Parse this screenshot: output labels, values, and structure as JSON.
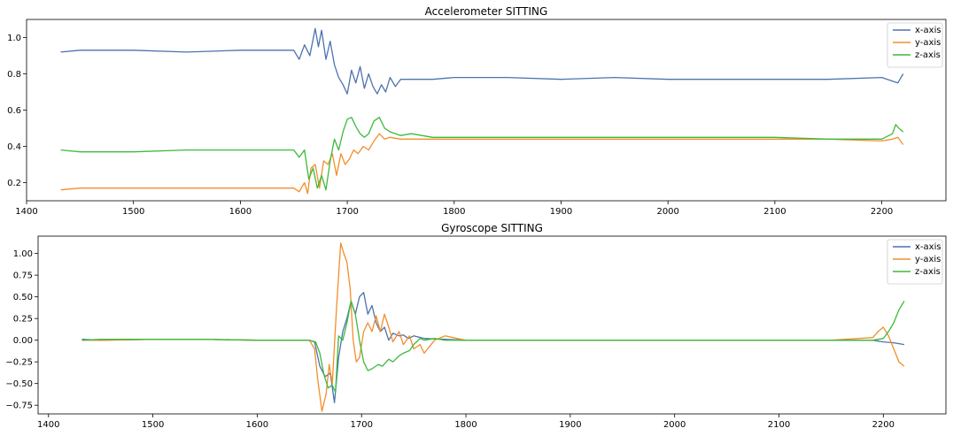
{
  "chart_data": [
    {
      "type": "line",
      "title": "Accelerometer SITTING",
      "xlabel": "",
      "ylabel": "",
      "xlim": [
        1400,
        2260
      ],
      "ylim": [
        0.1,
        1.1
      ],
      "xticks": [
        1400,
        1500,
        1600,
        1700,
        1800,
        1900,
        2000,
        2100,
        2200
      ],
      "yticks": [
        0.2,
        0.4,
        0.6,
        0.8,
        1.0
      ],
      "ytick_labels": [
        "0.2",
        "0.4",
        "0.6",
        "0.8",
        "1.0"
      ],
      "grid": false,
      "legend_position": "top-right",
      "series": [
        {
          "name": "x-axis",
          "color": "#4C72B0",
          "x": [
            1432,
            1450,
            1500,
            1550,
            1600,
            1650,
            1655,
            1660,
            1665,
            1670,
            1673,
            1676,
            1680,
            1684,
            1688,
            1692,
            1696,
            1700,
            1704,
            1708,
            1712,
            1716,
            1720,
            1724,
            1728,
            1732,
            1736,
            1740,
            1745,
            1750,
            1760,
            1780,
            1800,
            1850,
            1900,
            1950,
            2000,
            2050,
            2100,
            2150,
            2200,
            2210,
            2215,
            2220
          ],
          "y": [
            0.92,
            0.93,
            0.93,
            0.92,
            0.93,
            0.93,
            0.88,
            0.96,
            0.9,
            1.05,
            0.95,
            1.04,
            0.88,
            0.98,
            0.85,
            0.78,
            0.74,
            0.69,
            0.82,
            0.75,
            0.84,
            0.72,
            0.8,
            0.73,
            0.69,
            0.74,
            0.7,
            0.78,
            0.73,
            0.77,
            0.77,
            0.77,
            0.78,
            0.78,
            0.77,
            0.78,
            0.77,
            0.77,
            0.77,
            0.77,
            0.78,
            0.76,
            0.75,
            0.8
          ]
        },
        {
          "name": "y-axis",
          "color": "#F28E2B",
          "x": [
            1432,
            1450,
            1500,
            1550,
            1600,
            1650,
            1655,
            1660,
            1663,
            1666,
            1670,
            1674,
            1678,
            1682,
            1686,
            1690,
            1694,
            1698,
            1702,
            1706,
            1710,
            1715,
            1720,
            1725,
            1730,
            1735,
            1740,
            1750,
            1760,
            1780,
            1800,
            1850,
            1900,
            1950,
            2000,
            2050,
            2100,
            2150,
            2200,
            2210,
            2215,
            2220
          ],
          "y": [
            0.16,
            0.17,
            0.17,
            0.17,
            0.17,
            0.17,
            0.15,
            0.2,
            0.14,
            0.28,
            0.3,
            0.17,
            0.32,
            0.3,
            0.36,
            0.24,
            0.36,
            0.3,
            0.33,
            0.38,
            0.36,
            0.4,
            0.38,
            0.43,
            0.47,
            0.44,
            0.45,
            0.44,
            0.44,
            0.44,
            0.44,
            0.44,
            0.44,
            0.44,
            0.44,
            0.44,
            0.44,
            0.44,
            0.43,
            0.44,
            0.45,
            0.41
          ]
        },
        {
          "name": "z-axis",
          "color": "#3DB93D",
          "x": [
            1432,
            1450,
            1500,
            1550,
            1600,
            1650,
            1655,
            1660,
            1664,
            1668,
            1672,
            1676,
            1680,
            1684,
            1688,
            1692,
            1696,
            1700,
            1704,
            1708,
            1712,
            1716,
            1720,
            1725,
            1730,
            1735,
            1740,
            1750,
            1760,
            1780,
            1800,
            1850,
            1900,
            1950,
            2000,
            2050,
            2100,
            2150,
            2200,
            2210,
            2213,
            2216,
            2220
          ],
          "y": [
            0.38,
            0.37,
            0.37,
            0.38,
            0.38,
            0.38,
            0.34,
            0.38,
            0.22,
            0.28,
            0.17,
            0.24,
            0.16,
            0.32,
            0.44,
            0.38,
            0.48,
            0.55,
            0.56,
            0.51,
            0.47,
            0.45,
            0.47,
            0.54,
            0.56,
            0.5,
            0.48,
            0.46,
            0.47,
            0.45,
            0.45,
            0.45,
            0.45,
            0.45,
            0.45,
            0.45,
            0.45,
            0.44,
            0.44,
            0.47,
            0.52,
            0.5,
            0.48
          ]
        }
      ]
    },
    {
      "type": "line",
      "title": "Gyroscope SITTING",
      "xlabel": "",
      "ylabel": "",
      "xlim": [
        1390,
        2260
      ],
      "ylim": [
        -0.85,
        1.2
      ],
      "xticks": [
        1400,
        1500,
        1600,
        1700,
        1800,
        1900,
        2000,
        2100,
        2200
      ],
      "yticks": [
        -0.75,
        -0.5,
        -0.25,
        0.0,
        0.25,
        0.5,
        0.75,
        1.0
      ],
      "ytick_labels": [
        "−0.75",
        "−0.50",
        "−0.25",
        "0.00",
        "0.25",
        "0.50",
        "0.75",
        "1.00"
      ],
      "grid": false,
      "legend_position": "top-right",
      "series": [
        {
          "name": "x-axis",
          "color": "#4C72B0",
          "x": [
            1432,
            1450,
            1500,
            1550,
            1600,
            1650,
            1655,
            1660,
            1665,
            1670,
            1674,
            1678,
            1682,
            1686,
            1690,
            1694,
            1698,
            1702,
            1706,
            1710,
            1714,
            1718,
            1722,
            1726,
            1730,
            1736,
            1740,
            1745,
            1750,
            1760,
            1780,
            1800,
            1850,
            1900,
            1950,
            2000,
            2050,
            2100,
            2150,
            2190,
            2200,
            2210,
            2220
          ],
          "y": [
            0.01,
            0.0,
            0.01,
            0.01,
            0.0,
            0.0,
            -0.02,
            -0.3,
            -0.42,
            -0.38,
            -0.72,
            -0.2,
            0.1,
            0.25,
            0.45,
            0.3,
            0.5,
            0.55,
            0.3,
            0.4,
            0.2,
            0.1,
            0.15,
            0.0,
            0.08,
            0.05,
            0.06,
            0.02,
            0.05,
            0.02,
            0.01,
            0.0,
            0.0,
            0.0,
            0.0,
            0.0,
            0.0,
            0.0,
            0.0,
            0.0,
            -0.02,
            -0.03,
            -0.05
          ]
        },
        {
          "name": "y-axis",
          "color": "#F28E2B",
          "x": [
            1432,
            1450,
            1500,
            1550,
            1600,
            1650,
            1655,
            1658,
            1662,
            1666,
            1669,
            1672,
            1676,
            1680,
            1683,
            1686,
            1689,
            1692,
            1695,
            1698,
            1702,
            1706,
            1710,
            1714,
            1718,
            1722,
            1726,
            1730,
            1736,
            1740,
            1746,
            1750,
            1756,
            1760,
            1770,
            1780,
            1800,
            1850,
            1900,
            1950,
            2000,
            2050,
            2100,
            2150,
            2190,
            2195,
            2200,
            2205,
            2210,
            2215,
            2220
          ],
          "y": [
            0.0,
            0.0,
            0.01,
            0.01,
            0.0,
            0.0,
            -0.1,
            -0.45,
            -0.82,
            -0.62,
            -0.28,
            -0.5,
            0.38,
            1.12,
            1.0,
            0.9,
            0.6,
            0.0,
            -0.25,
            -0.2,
            0.1,
            0.2,
            0.1,
            0.28,
            0.1,
            0.3,
            0.15,
            -0.02,
            0.1,
            -0.05,
            0.05,
            -0.1,
            -0.05,
            -0.15,
            0.0,
            0.05,
            0.0,
            0.0,
            0.0,
            0.0,
            0.0,
            0.0,
            0.0,
            0.0,
            0.03,
            0.1,
            0.15,
            0.05,
            -0.1,
            -0.25,
            -0.3
          ]
        },
        {
          "name": "z-axis",
          "color": "#3DB93D",
          "x": [
            1432,
            1450,
            1500,
            1550,
            1600,
            1650,
            1656,
            1660,
            1664,
            1668,
            1672,
            1675,
            1678,
            1682,
            1686,
            1690,
            1694,
            1698,
            1702,
            1706,
            1710,
            1716,
            1720,
            1726,
            1730,
            1736,
            1740,
            1746,
            1750,
            1756,
            1760,
            1770,
            1780,
            1800,
            1850,
            1900,
            1950,
            2000,
            2050,
            2100,
            2150,
            2190,
            2200,
            2205,
            2210,
            2215,
            2220
          ],
          "y": [
            0.0,
            0.01,
            0.01,
            0.01,
            0.0,
            0.0,
            -0.02,
            -0.15,
            -0.4,
            -0.55,
            -0.52,
            -0.6,
            0.05,
            0.0,
            0.2,
            0.45,
            0.3,
            0.0,
            -0.25,
            -0.35,
            -0.33,
            -0.28,
            -0.3,
            -0.22,
            -0.25,
            -0.18,
            -0.15,
            -0.12,
            -0.05,
            0.02,
            0.0,
            0.02,
            0.0,
            0.0,
            0.0,
            0.0,
            0.0,
            0.0,
            0.0,
            0.0,
            0.0,
            0.0,
            0.02,
            0.1,
            0.2,
            0.35,
            0.45
          ]
        }
      ]
    }
  ]
}
